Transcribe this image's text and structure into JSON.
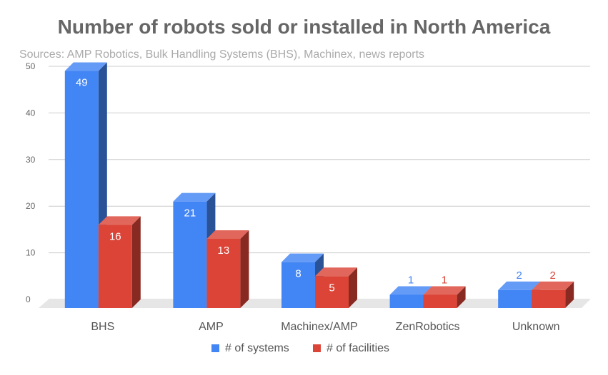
{
  "chart_data": {
    "type": "bar",
    "title": "Number of robots sold or installed in North America",
    "subtitle": "Sources: AMP Robotics, Bulk Handling Systems (BHS), Machinex, news reports",
    "xlabel": "",
    "ylabel": "",
    "ylim": [
      0,
      50
    ],
    "yticks": [
      "0",
      "10",
      "20",
      "30",
      "40",
      "50"
    ],
    "grid": true,
    "legend_position": "bottom",
    "style": "3d-columns",
    "categories": [
      "BHS",
      "AMP",
      "Machinex/AMP",
      "ZenRobotics",
      "Unknown"
    ],
    "series": [
      {
        "name": "# of systems",
        "color": "#4285f4",
        "values": [
          49,
          21,
          8,
          1,
          2
        ]
      },
      {
        "name": "# of facilities",
        "color": "#db4437",
        "values": [
          16,
          13,
          5,
          1,
          2
        ]
      }
    ],
    "data_labels": [
      [
        "49",
        "21",
        "8",
        "1",
        "2"
      ],
      [
        "16",
        "13",
        "5",
        "1",
        "2"
      ]
    ]
  }
}
